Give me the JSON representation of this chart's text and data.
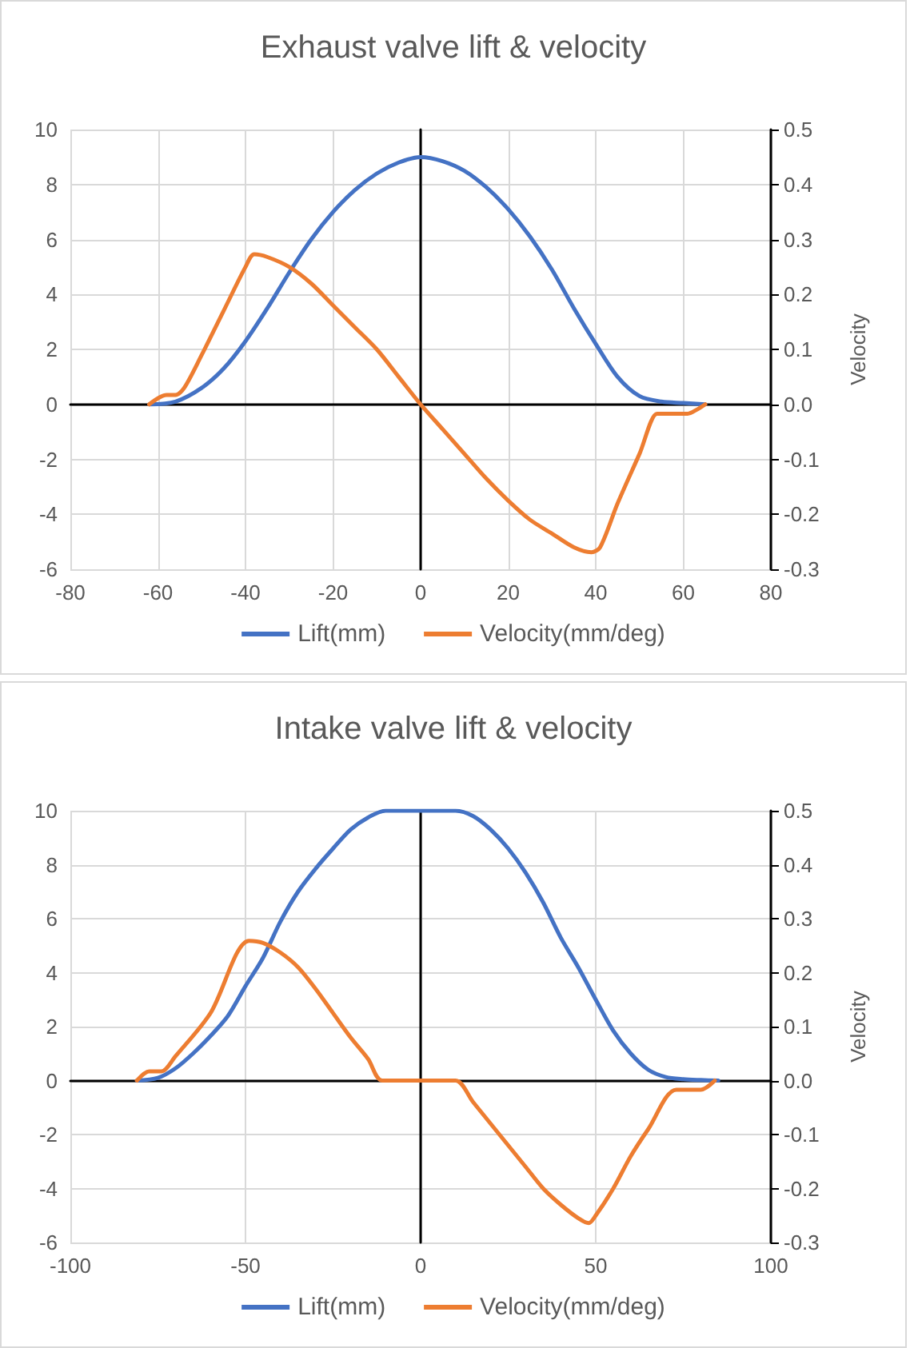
{
  "chart_data": [
    {
      "type": "line",
      "title": "Exhaust valve lift & velocity",
      "y2label": "Velocity",
      "xlim": [
        -80,
        80
      ],
      "xticks": [
        -80,
        -60,
        -40,
        -20,
        0,
        20,
        40,
        60,
        80
      ],
      "ylim": [
        -6,
        10
      ],
      "yticks": [
        -6,
        -4,
        -2,
        0,
        2,
        4,
        6,
        8,
        10
      ],
      "y2lim": [
        -0.3,
        0.5
      ],
      "y2ticks": [
        -0.3,
        -0.2,
        -0.1,
        {
          "value": 0,
          "label": "0.0"
        },
        0.1,
        0.2,
        0.3,
        0.4,
        0.5
      ],
      "grid": true,
      "legend": "bottom",
      "marker": "none",
      "series": [
        {
          "name": "Lift(mm)",
          "color": "#4472c4",
          "x": [
            -62,
            -56,
            -50,
            -45,
            -40,
            -35,
            -30,
            -25,
            -20,
            -15,
            -10,
            -5,
            0,
            5,
            10,
            15,
            20,
            25,
            30,
            35,
            40,
            45,
            50,
            55,
            60,
            65
          ],
          "values": [
            0,
            0.1,
            0.6,
            1.3,
            2.3,
            3.5,
            4.8,
            6.0,
            7.0,
            7.8,
            8.4,
            8.8,
            9.0,
            8.85,
            8.5,
            7.9,
            7.1,
            6.1,
            4.9,
            3.5,
            2.2,
            1.0,
            0.3,
            0.1,
            0.05,
            0
          ]
        },
        {
          "name": "Velocity(mm/deg)",
          "color": "#ed7d31",
          "axis": "y2",
          "x": [
            -62,
            -58,
            -56,
            -54,
            -50,
            -45,
            -40,
            -38,
            -35,
            -30,
            -25,
            -20,
            -15,
            -10,
            -5,
            0,
            5,
            10,
            15,
            20,
            25,
            30,
            35,
            39,
            41,
            45,
            50,
            54,
            55,
            61,
            63,
            65
          ],
          "values": [
            0,
            0.017,
            0.017,
            0.03,
            0.09,
            0.17,
            0.25,
            0.273,
            0.268,
            0.25,
            0.22,
            0.18,
            0.14,
            0.1,
            0.05,
            0,
            -0.045,
            -0.09,
            -0.135,
            -0.175,
            -0.21,
            -0.235,
            -0.26,
            -0.269,
            -0.26,
            -0.18,
            -0.09,
            -0.017,
            -0.017,
            -0.017,
            -0.01,
            0
          ]
        }
      ]
    },
    {
      "type": "line",
      "title": "Intake valve lift & velocity",
      "y2label": "Velocity",
      "xlim": [
        -100,
        100
      ],
      "xticks": [
        -100,
        -50,
        0,
        50,
        100
      ],
      "ylim": [
        -6,
        10
      ],
      "yticks": [
        -6,
        -4,
        -2,
        0,
        2,
        4,
        6,
        8,
        10
      ],
      "y2lim": [
        -0.3,
        0.5
      ],
      "y2ticks": [
        -0.3,
        -0.2,
        -0.1,
        {
          "value": 0,
          "label": "0.0"
        },
        0.1,
        0.2,
        0.3,
        0.4,
        0.5
      ],
      "grid": true,
      "legend": "bottom",
      "marker": "none",
      "series": [
        {
          "name": "Lift(mm)",
          "color": "#4472c4",
          "x": [
            -81,
            -75,
            -70,
            -65,
            -60,
            -55,
            -50,
            -45,
            -40,
            -35,
            -30,
            -25,
            -20,
            -15,
            -10,
            0,
            10,
            15,
            20,
            25,
            30,
            35,
            40,
            45,
            50,
            55,
            60,
            65,
            70,
            75,
            80,
            85
          ],
          "values": [
            0,
            0.1,
            0.45,
            1.0,
            1.65,
            2.4,
            3.5,
            4.55,
            5.9,
            7.0,
            7.85,
            8.6,
            9.3,
            9.75,
            10,
            10,
            10,
            9.8,
            9.3,
            8.6,
            7.7,
            6.6,
            5.3,
            4.2,
            3.0,
            1.85,
            1.0,
            0.4,
            0.13,
            0.05,
            0.02,
            0
          ]
        },
        {
          "name": "Velocity(mm/deg)",
          "color": "#ed7d31",
          "axis": "y2",
          "x": [
            -81,
            -77.5,
            -74,
            -70,
            -60,
            -49,
            -45,
            -40,
            -35,
            -30,
            -25,
            -20,
            -15,
            -11,
            0,
            10,
            15,
            20,
            25,
            30,
            35,
            40,
            45,
            48,
            50,
            55,
            60,
            65,
            73,
            80,
            84
          ],
          "values": [
            0,
            0.017,
            0.017,
            0.045,
            0.125,
            0.259,
            0.255,
            0.237,
            0.21,
            0.17,
            0.125,
            0.08,
            0.04,
            0,
            0,
            0,
            -0.04,
            -0.08,
            -0.12,
            -0.16,
            -0.2,
            -0.23,
            -0.255,
            -0.264,
            -0.25,
            -0.2,
            -0.14,
            -0.09,
            -0.017,
            -0.017,
            0
          ]
        }
      ]
    }
  ]
}
